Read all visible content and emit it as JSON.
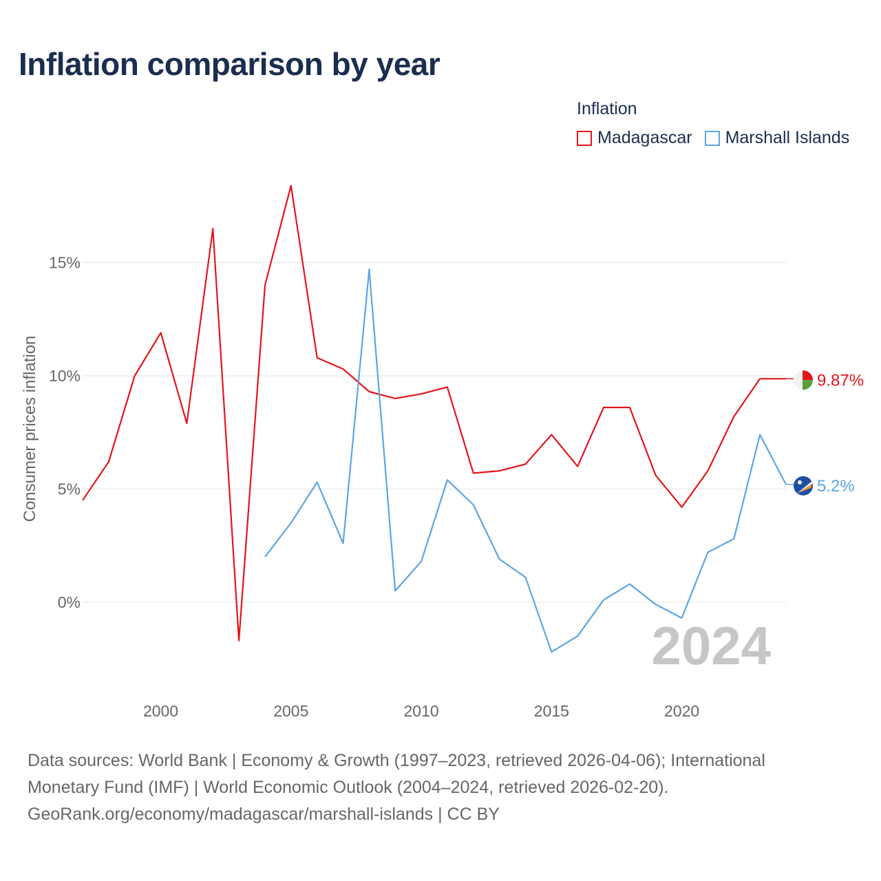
{
  "title": "Inflation comparison by year",
  "legend": {
    "title": "Inflation",
    "items": [
      {
        "label": "Madagascar",
        "color": "#e4141c"
      },
      {
        "label": "Marshall Islands",
        "color": "#5aa5e6"
      }
    ]
  },
  "footer": {
    "line1": "Data sources: World Bank | Economy & Growth (1997–2023, retrieved 2026-04-06); International Monetary Fund (IMF) | World Economic Outlook (2004–2024, retrieved 2026-02-20).",
    "line2": "GeoRank.org/economy/madagascar/marshall-islands | CC BY"
  },
  "chart_data": {
    "type": "line",
    "title": "Inflation comparison by year",
    "xlabel": "",
    "ylabel": "Consumer prices inflation",
    "xlim": [
      1997,
      2024
    ],
    "ylim": [
      -3.5,
      19
    ],
    "x_ticks": [
      2000,
      2005,
      2010,
      2015,
      2020
    ],
    "y_ticks": [
      0,
      5,
      10,
      15
    ],
    "y_tick_labels": [
      "0%",
      "5%",
      "10%",
      "15%"
    ],
    "year_watermark": "2024",
    "series": [
      {
        "name": "Madagascar",
        "color": "#e4141c",
        "end_label": "9.87%",
        "x": [
          1997,
          1998,
          1999,
          2000,
          2001,
          2002,
          2003,
          2004,
          2005,
          2006,
          2007,
          2008,
          2009,
          2010,
          2011,
          2012,
          2013,
          2014,
          2015,
          2016,
          2017,
          2018,
          2019,
          2020,
          2021,
          2022,
          2023,
          2024
        ],
        "y": [
          4.5,
          6.2,
          10.0,
          11.9,
          7.9,
          16.5,
          -1.7,
          14.0,
          18.4,
          10.8,
          10.3,
          9.3,
          9.0,
          9.2,
          9.5,
          5.7,
          5.8,
          6.1,
          7.4,
          6.0,
          8.6,
          8.6,
          5.6,
          4.2,
          5.8,
          8.2,
          9.87,
          9.87
        ]
      },
      {
        "name": "Marshall Islands",
        "color": "#5aa5e6",
        "end_label": "5.2%",
        "x": [
          2004,
          2005,
          2006,
          2007,
          2008,
          2009,
          2010,
          2011,
          2012,
          2013,
          2014,
          2015,
          2016,
          2017,
          2018,
          2019,
          2020,
          2021,
          2022,
          2023,
          2024
        ],
        "y": [
          2.0,
          3.5,
          5.3,
          2.6,
          14.7,
          0.5,
          1.8,
          5.4,
          4.3,
          1.9,
          1.1,
          -2.2,
          -1.5,
          0.1,
          0.8,
          -0.1,
          -0.7,
          2.2,
          2.8,
          7.4,
          5.2
        ]
      }
    ]
  }
}
